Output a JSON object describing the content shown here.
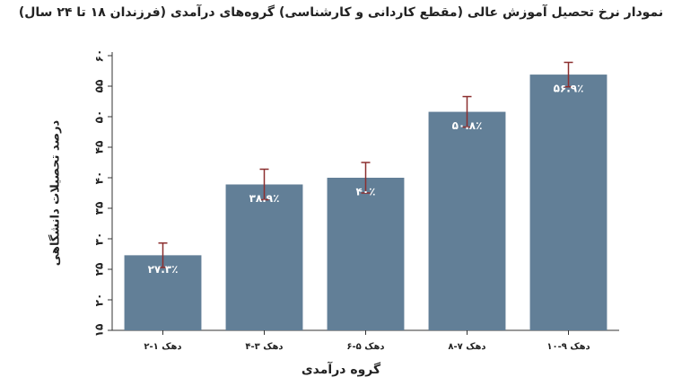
{
  "chart_data": {
    "type": "bar",
    "title": "نمودار نرخ تحصیل آموزش عالی (مقطع کاردانی و کارشناسی) گروه‌های درآمدی (فرزندان ۱۸ تا ۲۴ سال)",
    "x_label": "گروه درآمدی",
    "y_label": "درصد تحصیلات دانشگاهی",
    "categories": [
      "دهک ۱-۲",
      "دهک ۳-۴",
      "دهک ۵-۶",
      "دهک ۷-۸",
      "دهک ۹-۱۰"
    ],
    "values": [
      27.3,
      38.9,
      40,
      50.8,
      56.9
    ],
    "value_labels": [
      "۲۷.۳٪",
      "۳۸.۹٪",
      "۴۰٪",
      "۵۰.۸٪",
      "۵۶.۹٪"
    ],
    "errors": [
      2,
      2.5,
      2.5,
      2.5,
      2
    ],
    "color": "#627f97",
    "error_color": "#8c2f2f",
    "ylim": [
      15,
      60
    ],
    "yticks": [
      {
        "value": 15,
        "label": "۱۵"
      },
      {
        "value": 20,
        "label": "۲۰"
      },
      {
        "value": 25,
        "label": "۲۵"
      },
      {
        "value": 30,
        "label": "۳۰"
      },
      {
        "value": 35,
        "label": "۳۵"
      },
      {
        "value": 40,
        "label": "۴۰"
      },
      {
        "value": 45,
        "label": "۴۵"
      },
      {
        "value": 50,
        "label": "۵۰"
      },
      {
        "value": 55,
        "label": "۵۵"
      },
      {
        "value": 60,
        "label": "۶۰"
      }
    ],
    "grid": false
  }
}
